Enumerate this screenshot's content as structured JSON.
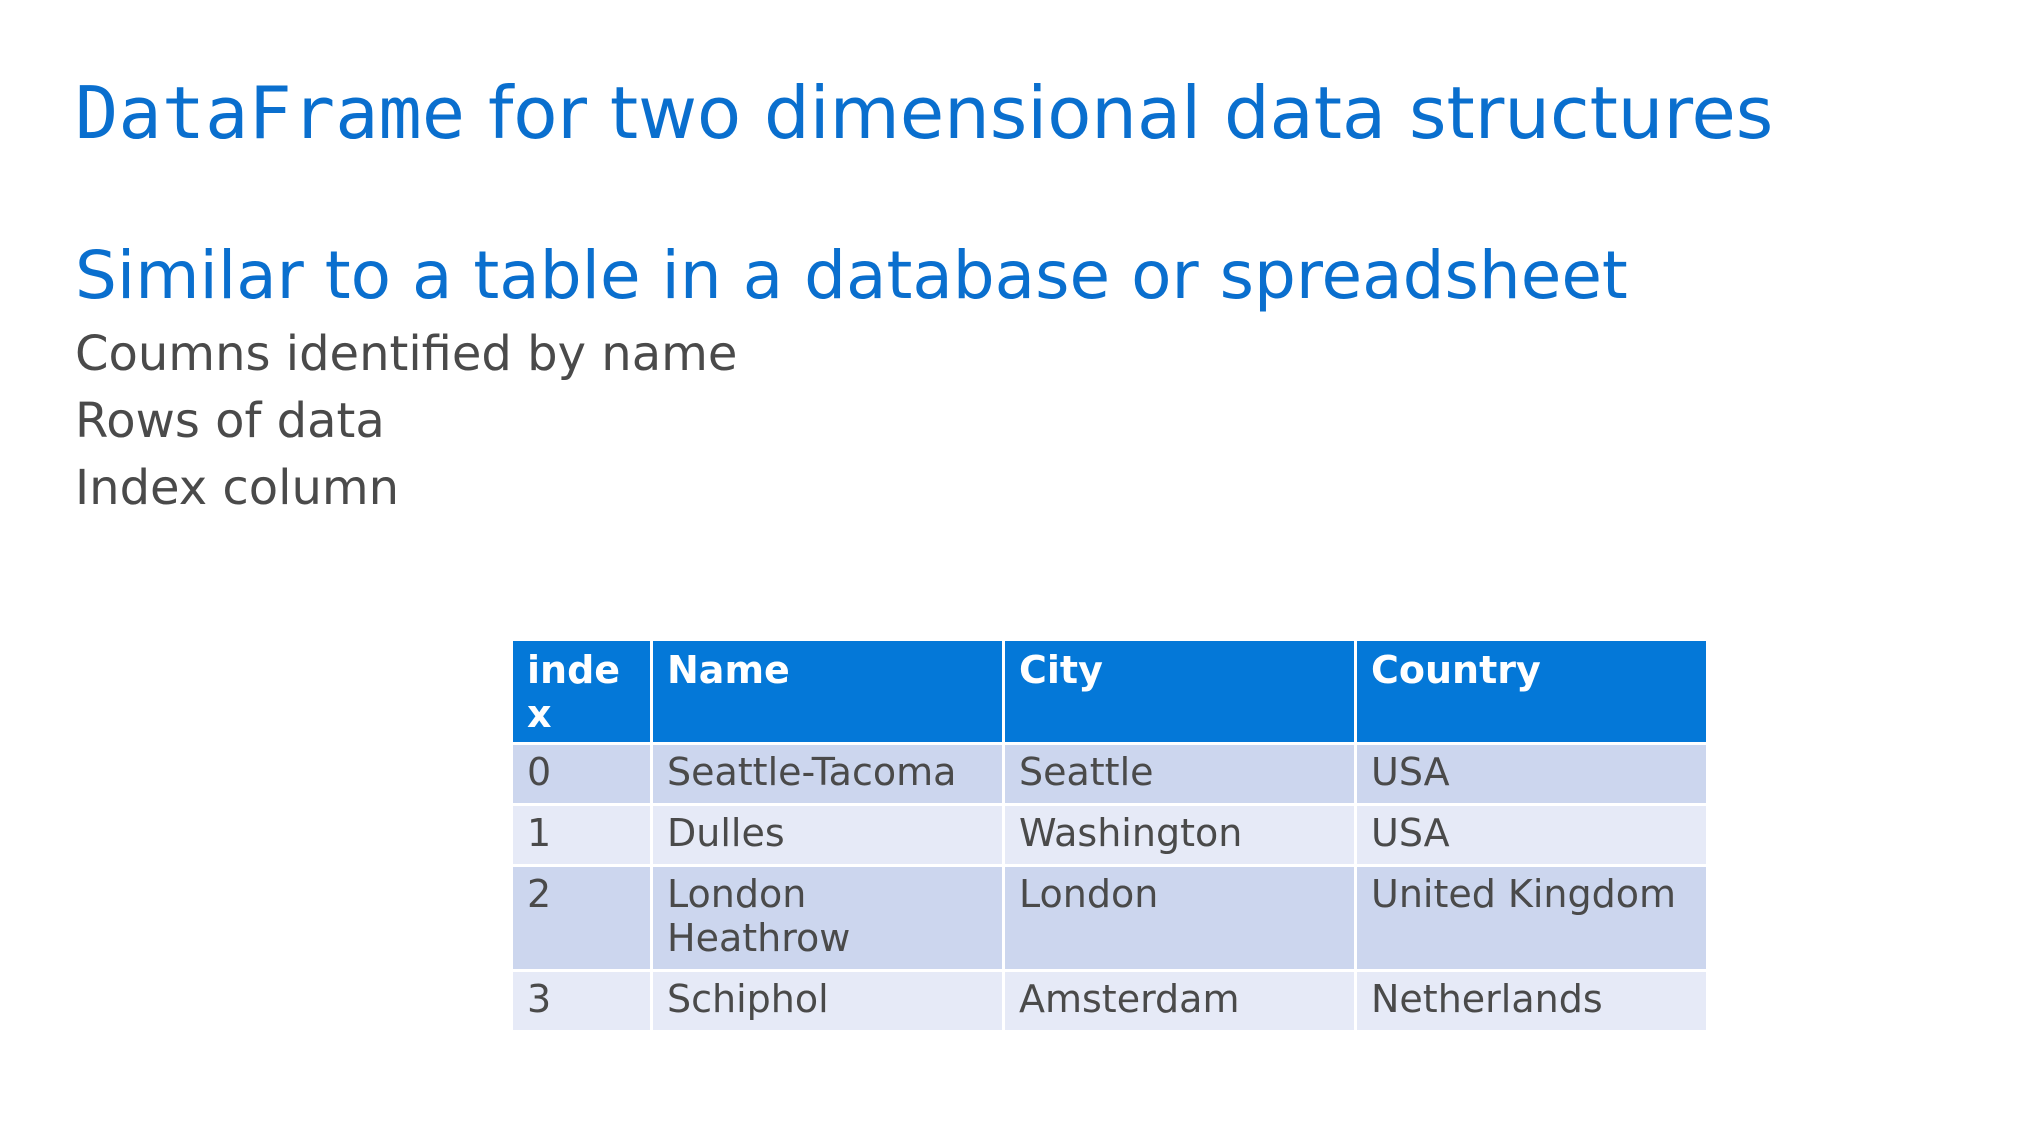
{
  "slide": {
    "title_code": "DataFrame",
    "title_rest": " for two dimensional data structures",
    "subtitle": "Similar to a table in a database or spreadsheet",
    "bullets": [
      "Coumns identified by name",
      "Rows of data",
      "Index column"
    ]
  },
  "table": {
    "headers": [
      "index",
      "Name",
      "City",
      "Country"
    ],
    "rows": [
      [
        "0",
        "Seattle-Tacoma",
        "Seattle",
        "USA"
      ],
      [
        "1",
        "Dulles",
        "Washington",
        "USA"
      ],
      [
        "2",
        "London Heathrow",
        "London",
        "United Kingdom"
      ],
      [
        "3",
        "Schiphol",
        "Amsterdam",
        "Netherlands"
      ]
    ]
  },
  "colors": {
    "title": "#0a6fce",
    "header_bg": "#0478d8",
    "row_odd": "#ccd6ee",
    "row_even": "#e6eaf7",
    "body_text": "#4a4a4a"
  }
}
